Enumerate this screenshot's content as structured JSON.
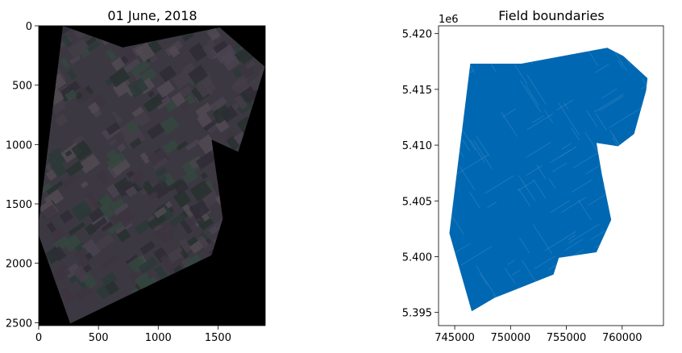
{
  "chart_data": [
    {
      "type": "image",
      "title": "01 June, 2018",
      "xlim": [
        0,
        1895
      ],
      "ylim": [
        2525,
        0
      ],
      "xticks": [
        0,
        500,
        1000,
        1500
      ],
      "xtick_labels": [
        "0",
        "500",
        "1000",
        "1500"
      ],
      "yticks": [
        0,
        500,
        1000,
        1500,
        2000,
        2500
      ],
      "ytick_labels": [
        "0",
        "500",
        "1000",
        "1500",
        "2000",
        "2500"
      ],
      "background_color": "#000000",
      "image_color": "#3b3841",
      "footprint": [
        [
          203,
          0
        ],
        [
          703,
          182
        ],
        [
          1514,
          14
        ],
        [
          1892,
          345
        ],
        [
          1669,
          1061
        ],
        [
          1446,
          959
        ],
        [
          1540,
          1622
        ],
        [
          1446,
          1932
        ],
        [
          264,
          2507
        ],
        [
          0,
          1764
        ],
        [
          0,
          1655
        ]
      ]
    },
    {
      "type": "polygon",
      "title": "Field boundaries",
      "offset_label": "1e6",
      "xlim": [
        743550,
        763700
      ],
      "ylim": [
        5.39382,
        5.4207
      ],
      "xticks": [
        745000,
        750000,
        755000,
        760000
      ],
      "xtick_labels": [
        "745000",
        "750000",
        "755000",
        "760000"
      ],
      "yticks": [
        5.395,
        5.4,
        5.405,
        5.41,
        5.415,
        5.42
      ],
      "ytick_labels": [
        "5.395",
        "5.400",
        "5.405",
        "5.410",
        "5.415",
        "5.420"
      ],
      "fill_color": "#0068b2",
      "outline": [
        [
          746393,
          5.4173
        ],
        [
          750967,
          5.4173
        ],
        [
          758660,
          5.41873
        ],
        [
          760100,
          5.418
        ],
        [
          762270,
          5.416
        ],
        [
          762150,
          5.4149
        ],
        [
          761070,
          5.411
        ],
        [
          759630,
          5.4099
        ],
        [
          757700,
          5.4102
        ],
        [
          758180,
          5.4074
        ],
        [
          759020,
          5.4033
        ],
        [
          757700,
          5.4004
        ],
        [
          754330,
          5.3999
        ],
        [
          753850,
          5.3984
        ],
        [
          748560,
          5.3963
        ],
        [
          746520,
          5.3951
        ],
        [
          744520,
          5.4021
        ]
      ]
    }
  ]
}
